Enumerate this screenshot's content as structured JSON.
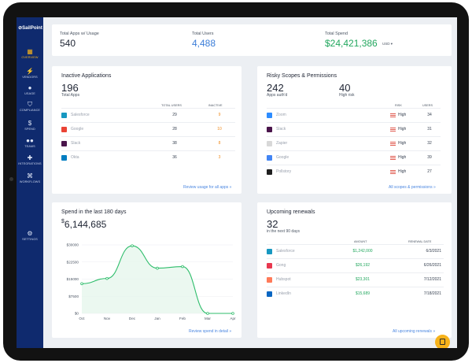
{
  "brand": {
    "logo_text": "⊘SailPoint",
    "accent": "#f6b21a",
    "sidebar_bg": "#0f2a6e"
  },
  "nav": [
    {
      "label": "OVERVIEW",
      "icon": "grid-icon",
      "glyph": "▦",
      "active": true
    },
    {
      "label": "VENDORS",
      "icon": "bolt-icon",
      "glyph": "⚡"
    },
    {
      "label": "USAGE",
      "icon": "person-icon",
      "glyph": "●"
    },
    {
      "label": "COMPLIANCE",
      "icon": "shield-icon",
      "glyph": "⛉"
    },
    {
      "label": "SPEND",
      "icon": "dollar-icon",
      "glyph": "$"
    },
    {
      "label": "TEAMS",
      "icon": "people-icon",
      "glyph": "●●"
    },
    {
      "label": "INTEGRATIONS",
      "icon": "puzzle-icon",
      "glyph": "✚"
    },
    {
      "label": "WORKFLOWS",
      "icon": "workflow-icon",
      "glyph": "⌘"
    },
    {
      "label": "SETTINGS",
      "icon": "gear-icon",
      "glyph": "⚙"
    }
  ],
  "summary": {
    "apps_label": "Total Apps w/ Usage",
    "apps_value": "540",
    "users_label": "Total Users",
    "users_value": "4,488",
    "spend_label": "Total Spend",
    "spend_value": "$24,421,386",
    "spend_unit": "USD ▾"
  },
  "inactive": {
    "title": "Inactive Applications",
    "count": "196",
    "count_label": "Total Apps",
    "col_users": "TOTAL USERS",
    "col_inactive": "INACTIVE",
    "rows": [
      {
        "name": "Salesforce",
        "icon": "salesforce-icon",
        "color": "#1798c1",
        "users": "29",
        "inactive": "9"
      },
      {
        "name": "Google",
        "icon": "google-icon",
        "color": "#ea4335",
        "users": "28",
        "inactive": "10"
      },
      {
        "name": "Slack",
        "icon": "slack-icon",
        "color": "#4a154b",
        "users": "38",
        "inactive": "8"
      },
      {
        "name": "Okta",
        "icon": "okta-icon",
        "color": "#007dc1",
        "users": "36",
        "inactive": "3"
      }
    ],
    "link": "Review usage for all apps »"
  },
  "risky": {
    "title": "Risky Scopes & Permissions",
    "authd_value": "242",
    "authd_label": "Apps auth'd",
    "high_value": "40",
    "high_label": "High risk",
    "col_risk": "RISK",
    "col_users": "USERS",
    "rows": [
      {
        "name": "Zoom",
        "icon": "zoom-icon",
        "color": "#2d8cff",
        "risk": "High",
        "users": "34"
      },
      {
        "name": "Slack",
        "icon": "slack-icon",
        "color": "#4a154b",
        "risk": "High",
        "users": "31"
      },
      {
        "name": "Zapier",
        "icon": "zapier-icon",
        "color": "#d8d8d8",
        "risk": "High",
        "users": "32"
      },
      {
        "name": "Google",
        "icon": "google-icon",
        "color": "#4285f4",
        "risk": "High",
        "users": "39"
      },
      {
        "name": "Pollstory",
        "icon": "pollstory-icon",
        "color": "#1f1f1f",
        "risk": "High",
        "users": "27"
      }
    ],
    "link": "All scopes & permissions »"
  },
  "spend": {
    "title": "Spend in the last 180 days",
    "total_symbol": "$",
    "total_value": "6,144,685",
    "link": "Review spend in detail »"
  },
  "renewals": {
    "title": "Upcoming renewals",
    "count": "32",
    "count_label": "in the next 90 days",
    "col_amount": "AMOUNT",
    "col_date": "RENEWAL DATE",
    "rows": [
      {
        "name": "Salesforce",
        "icon": "salesforce-icon",
        "color": "#1798c1",
        "amount": "$1,242,000",
        "date": "6/3/2021"
      },
      {
        "name": "Gong",
        "icon": "gong-icon",
        "color": "#e8384f",
        "amount": "$26,192",
        "date": "6/26/2021"
      },
      {
        "name": "Hubspot",
        "icon": "hubspot-icon",
        "color": "#ff7a59",
        "amount": "$23,301",
        "date": "7/12/2021"
      },
      {
        "name": "LinkedIn",
        "icon": "linkedin-icon",
        "color": "#0a66c2",
        "amount": "$15,689",
        "date": "7/18/2021"
      }
    ],
    "link": "All upcoming renewals »"
  },
  "chart_data": {
    "type": "area",
    "title": "Spend in the last 180 days",
    "categories": [
      "Oct",
      "Nov",
      "Dec",
      "Jan",
      "Feb",
      "Mar",
      "Apr"
    ],
    "y_ticks": [
      "$0",
      "$7500",
      "$15000",
      "$22500",
      "$30000"
    ],
    "ylim": [
      0,
      30000
    ],
    "series": [
      {
        "values": [
          13000,
          15300,
          29600,
          19800,
          20500,
          0,
          0
        ]
      }
    ],
    "color": "#2ebd6b",
    "grid": true
  }
}
